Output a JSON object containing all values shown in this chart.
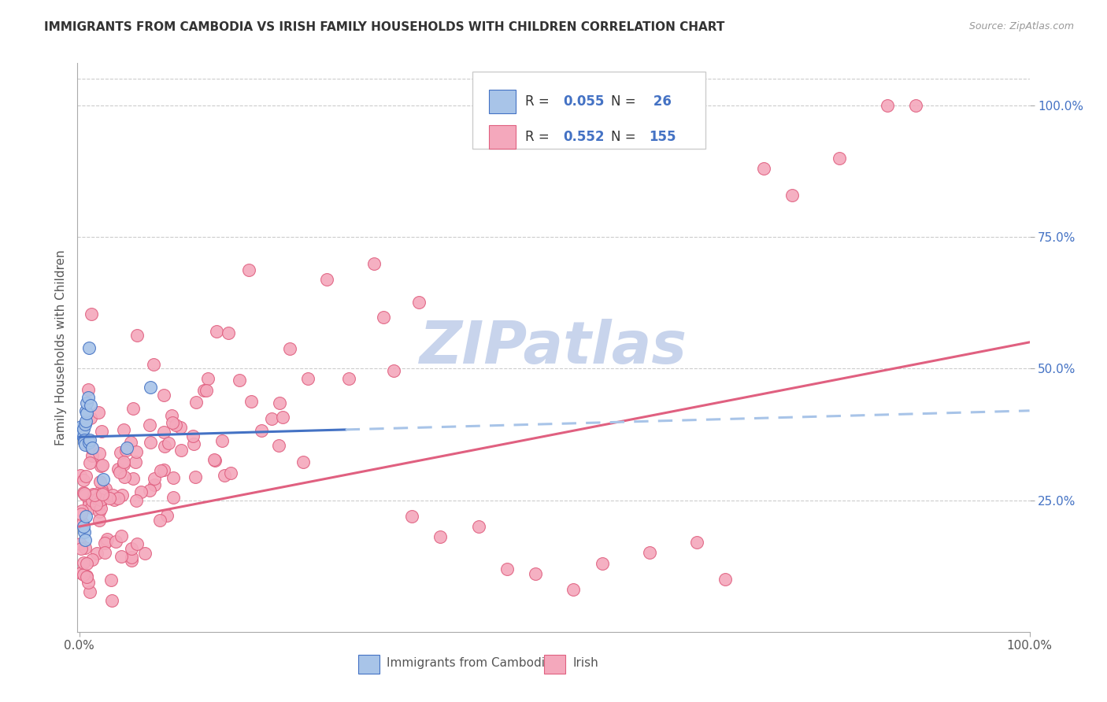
{
  "title": "IMMIGRANTS FROM CAMBODIA VS IRISH FAMILY HOUSEHOLDS WITH CHILDREN CORRELATION CHART",
  "source": "Source: ZipAtlas.com",
  "ylabel": "Family Households with Children",
  "legend_label1": "Immigrants from Cambodia",
  "legend_label2": "Irish",
  "color_blue_fill": "#A8C4E8",
  "color_pink_fill": "#F4A8BC",
  "color_blue_line": "#4472C4",
  "color_pink_line": "#E06080",
  "color_grid": "#CCCCCC",
  "background_color": "#FFFFFF",
  "watermark_text": "ZIPatlas",
  "watermark_color": "#C8D4EC",
  "title_fontsize": 11,
  "source_fontsize": 9,
  "tick_fontsize": 11,
  "ylabel_fontsize": 11,
  "legend_fontsize": 12,
  "note_R1": "R = 0.055",
  "note_N1": "N =  26",
  "note_R2": "R = 0.552",
  "note_N2": "N = 155"
}
